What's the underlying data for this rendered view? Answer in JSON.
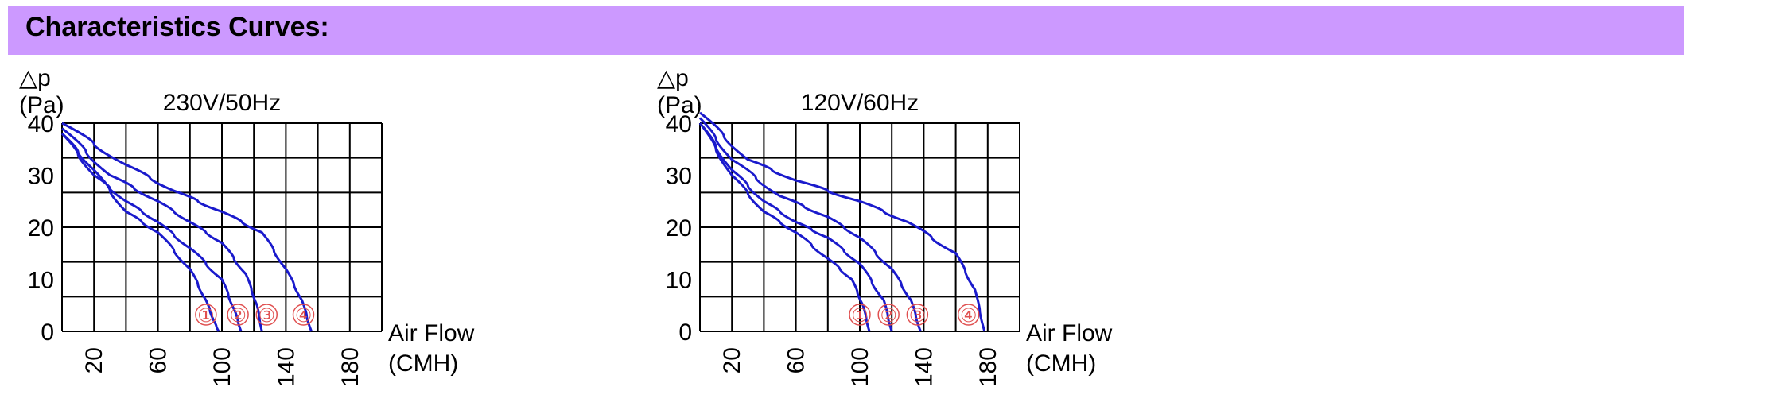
{
  "header": {
    "title": "Characteristics Curves:",
    "color": "#cc99ff"
  },
  "chart_data": [
    {
      "type": "line",
      "title": "230V/50Hz",
      "ylabel_symbol": "△p",
      "ylabel_unit": "(Pa)",
      "xlabel": "Air Flow",
      "xlabel_unit": "(CMH)",
      "xlim": [
        0,
        200
      ],
      "ylim": [
        0,
        40
      ],
      "xticks": [
        20,
        60,
        100,
        140,
        180
      ],
      "yticks": [
        0,
        10,
        20,
        30,
        40
      ],
      "grid": true,
      "curve_color": "#1a1acc",
      "marker_color": "#e05050",
      "series": [
        {
          "name": "①",
          "x": [
            0,
            20,
            40,
            60,
            80,
            90,
            95,
            98
          ],
          "y": [
            38,
            31,
            23,
            19,
            12,
            6,
            2,
            0
          ],
          "label_x": 90
        },
        {
          "name": "②",
          "x": [
            0,
            20,
            40,
            60,
            80,
            100,
            108,
            112
          ],
          "y": [
            38,
            30,
            25,
            21,
            16,
            10,
            4,
            0
          ],
          "label_x": 110
        },
        {
          "name": "③",
          "x": [
            0,
            30,
            60,
            80,
            100,
            115,
            122,
            125
          ],
          "y": [
            39,
            30,
            25,
            21,
            17,
            11,
            5,
            0
          ],
          "label_x": 128
        },
        {
          "name": "④",
          "x": [
            0,
            40,
            70,
            100,
            125,
            140,
            150,
            156
          ],
          "y": [
            40,
            32,
            27,
            23,
            19,
            12,
            6,
            0
          ],
          "label_x": 151
        }
      ]
    },
    {
      "type": "line",
      "title": "120V/60Hz",
      "ylabel_symbol": "△p",
      "ylabel_unit": "(Pa)",
      "xlabel": "Air Flow",
      "xlabel_unit": "(CMH)",
      "xlim": [
        0,
        200
      ],
      "ylim": [
        0,
        40
      ],
      "xticks": [
        20,
        60,
        100,
        140,
        180
      ],
      "yticks": [
        0,
        10,
        20,
        30,
        40
      ],
      "grid": true,
      "curve_color": "#1a1acc",
      "marker_color": "#e05050",
      "series": [
        {
          "name": "①",
          "x": [
            0,
            20,
            40,
            60,
            80,
            95,
            102,
            106
          ],
          "y": [
            40,
            30,
            23,
            19,
            14,
            10,
            5,
            0
          ],
          "label_x": 100
        },
        {
          "name": "②",
          "x": [
            0,
            20,
            40,
            60,
            80,
            100,
            115,
            120
          ],
          "y": [
            40,
            31,
            25,
            21,
            18,
            13,
            6,
            0
          ],
          "label_x": 118
        },
        {
          "name": "③",
          "x": [
            0,
            20,
            50,
            80,
            100,
            120,
            132,
            138
          ],
          "y": [
            41,
            33,
            26,
            22,
            18,
            12,
            6,
            0
          ],
          "label_x": 136
        },
        {
          "name": "④",
          "x": [
            0,
            30,
            60,
            100,
            130,
            160,
            172,
            178
          ],
          "y": [
            42,
            33,
            29,
            25,
            21,
            15,
            8,
            0
          ],
          "label_x": 168
        }
      ]
    }
  ]
}
